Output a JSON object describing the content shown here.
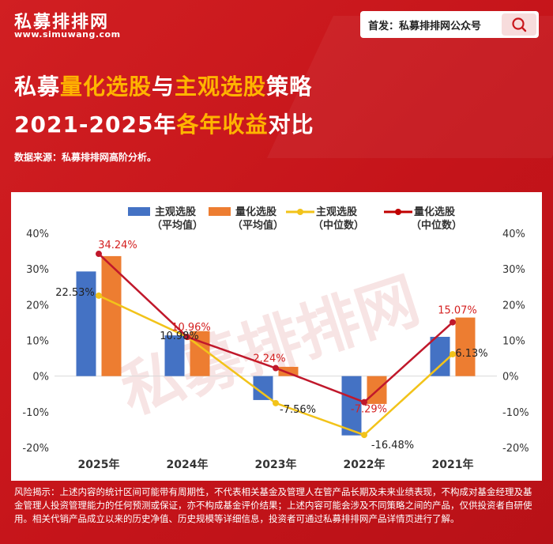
{
  "brand": {
    "name": "私募排排网",
    "url": "www.simuwang.com"
  },
  "search": {
    "label": "首发：私募排排网公众号"
  },
  "title": {
    "line1": {
      "p1": "私募",
      "h1": "量化选股",
      "p2": "与",
      "h2": "主观选股",
      "p3": "策略"
    },
    "line2": {
      "p1": "2021-2025年",
      "h1": "各年收益",
      "p2": "对比"
    }
  },
  "source": "数据来源：私募排排网高阶分析。",
  "watermark": "私募排排网",
  "legend": [
    {
      "line1": "主观选股",
      "line2": "（平均值）",
      "type": "bar",
      "color": "#4472c4"
    },
    {
      "line1": "量化选股",
      "line2": "（平均值）",
      "type": "bar",
      "color": "#ed7d31"
    },
    {
      "line1": "主观选股",
      "line2": "（中位数）",
      "type": "line",
      "color": "#f2c31a"
    },
    {
      "line1": "量化选股",
      "line2": "（中位数）",
      "type": "line",
      "color": "#c00000"
    }
  ],
  "chart_data": {
    "type": "bar",
    "categories": [
      "2025年",
      "2024年",
      "2023年",
      "2022年",
      "2021年"
    ],
    "series": [
      {
        "name": "主观选股（平均值）",
        "type": "bar",
        "color": "#4472c4",
        "values": [
          29.3,
          11.4,
          -6.7,
          -16.6,
          11.0
        ]
      },
      {
        "name": "量化选股（平均值）",
        "type": "bar",
        "color": "#ed7d31",
        "values": [
          33.6,
          12.6,
          2.6,
          -7.8,
          16.4
        ]
      },
      {
        "name": "主观选股（中位数）",
        "type": "line",
        "color": "#f2c31a",
        "values": [
          22.53,
          10.98,
          -7.56,
          -16.48,
          6.13
        ],
        "labels": [
          "22.53%",
          "10.98%",
          "-7.56%",
          "-16.48%",
          "6.13%"
        ]
      },
      {
        "name": "量化选股（中位数）",
        "type": "line",
        "color": "#c0182b",
        "values": [
          34.24,
          10.96,
          2.24,
          -7.29,
          15.07
        ],
        "labels": [
          "34.24%",
          "10.96%",
          "2.24%",
          "-7.29%",
          "15.07%"
        ]
      }
    ],
    "ylim": [
      -20,
      40
    ],
    "yticks": [
      "40%",
      "30%",
      "20%",
      "10%",
      "0%",
      "-10%",
      "-20%"
    ],
    "grid": false,
    "legend_position": "top"
  },
  "disclaimer": "风险揭示：上述内容的统计区间可能带有周期性，不代表相关基金及管理人在管产品长期及未来业绩表现，不构成对基金经理及基金管理人投资管理能力的任何预测或保证，亦不构成基金评价结果；上述内容可能会涉及不同策略之间的产品，仅供投资者自研使用。相关代销产品成立以来的历史净值、历史规模等详细信息，投资者可通过私募排排网产品详情页进行了解。"
}
